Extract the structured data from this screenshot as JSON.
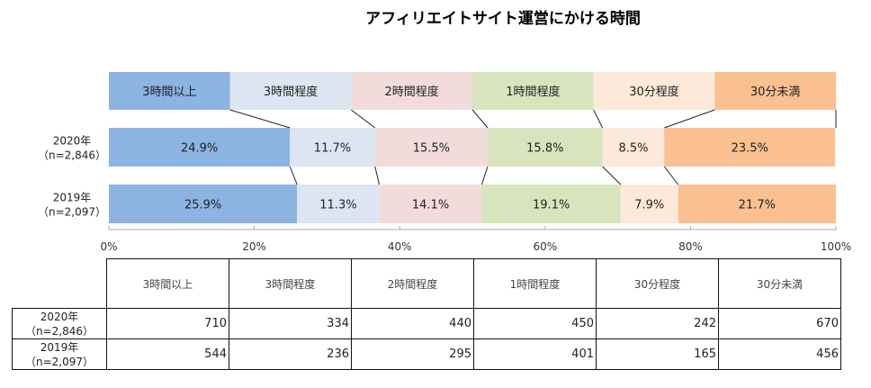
{
  "chart_data": {
    "type": "bar",
    "stacked": true,
    "orientation": "horizontal",
    "title": "アフィリエイトサイト運営にかける時間",
    "categories": [
      "2020年\n（n=2,846）",
      "2019年\n（n=2,097）"
    ],
    "category_lines": [
      [
        "2020年",
        "（n=2,846）"
      ],
      [
        "2019年",
        "（n=2,097）"
      ]
    ],
    "series": [
      {
        "name": "3時間以上",
        "color": "#8db3e2",
        "values": [
          24.9,
          25.9
        ],
        "labels": [
          "24.9%",
          "25.9%"
        ]
      },
      {
        "name": "3時間程度",
        "color": "#dce6f2",
        "values": [
          11.7,
          11.3
        ],
        "labels": [
          "11.7%",
          "11.3%"
        ]
      },
      {
        "name": "2時間程度",
        "color": "#f2dcdb",
        "values": [
          15.5,
          14.1
        ],
        "labels": [
          "15.5%",
          "14.1%"
        ]
      },
      {
        "name": "1時間程度",
        "color": "#d7e4bd",
        "values": [
          15.8,
          19.1
        ],
        "labels": [
          "15.8%",
          "19.1%"
        ]
      },
      {
        "name": "30分程度",
        "color": "#fde9d9",
        "values": [
          8.5,
          7.9
        ],
        "labels": [
          "8.5%",
          "7.9%"
        ]
      },
      {
        "name": "30分未満",
        "color": "#fac090",
        "values": [
          23.5,
          21.7
        ],
        "labels": [
          "23.5%",
          "21.7%"
        ]
      }
    ],
    "xlim": [
      0,
      100
    ],
    "xticks": [
      "0%",
      "20%",
      "40%",
      "60%",
      "80%",
      "100%"
    ],
    "legend": "top"
  },
  "table": {
    "headers": [
      "3時間以上",
      "3時間程度",
      "2時間程度",
      "1時間程度",
      "30分程度",
      "30分未満"
    ],
    "rows": [
      {
        "label1": "2020年",
        "label2": "（n=2,846）",
        "values": [
          "710",
          "334",
          "440",
          "450",
          "242",
          "670"
        ]
      },
      {
        "label1": "2019年",
        "label2": "（n=2,097）",
        "values": [
          "544",
          "236",
          "295",
          "401",
          "165",
          "456"
        ]
      }
    ]
  }
}
